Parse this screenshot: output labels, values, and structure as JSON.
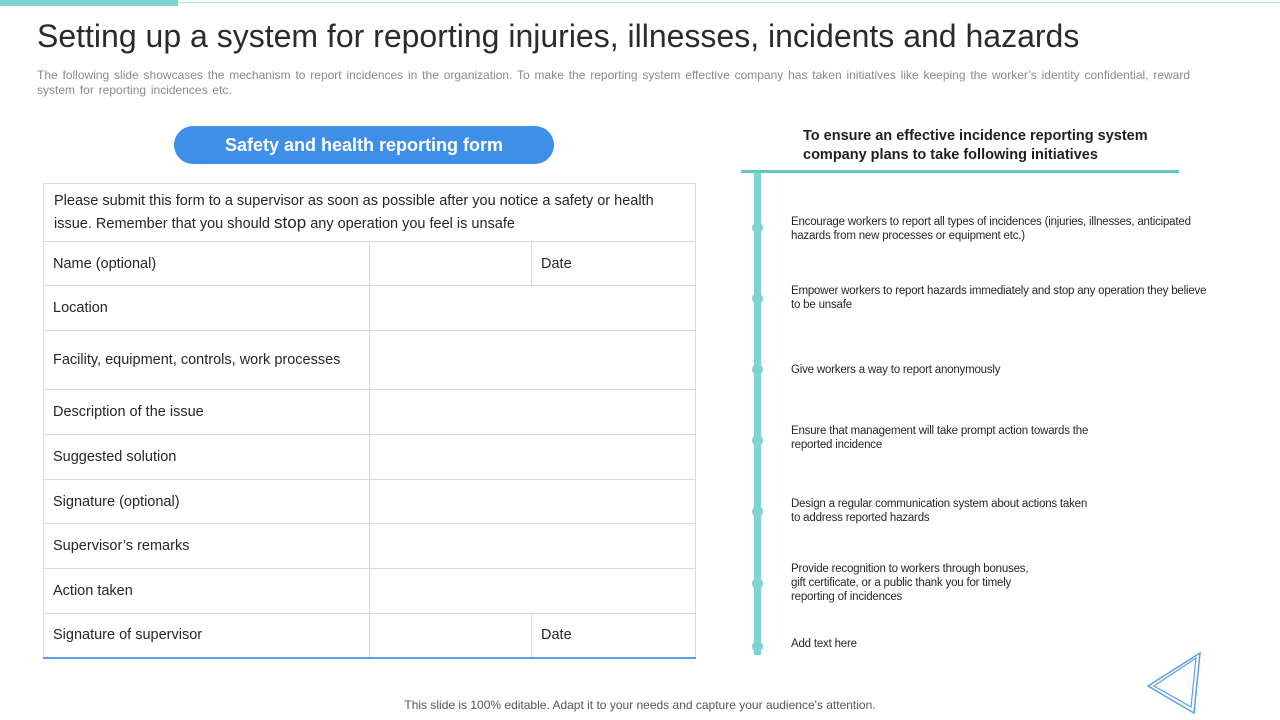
{
  "colors": {
    "accent_teal": "#7fd3d0",
    "accent_blue": "#3d8fe8",
    "table_border": "#d9d9d9"
  },
  "slide": {
    "title": "Setting up a system for reporting injuries, illnesses, incidents and hazards",
    "subtitle": "The following slide showcases the mechanism to report incidences in the organization. To make the reporting system effective company has taken initiatives like keeping the worker’s identity confidential, reward system for reporting incidences etc.",
    "footer": "This slide is 100% editable. Adapt it to your needs and capture your audience's attention."
  },
  "form": {
    "header": "Safety and health reporting form",
    "intro_before": "Please submit this form to a supervisor as soon as possible after you notice a safety or health issue. Remember that you should ",
    "intro_emphasis": "stop",
    "intro_after": " any operation you feel is unsafe",
    "rows": [
      {
        "label": "Name (optional)",
        "extra": "Date"
      },
      {
        "label": "Location"
      },
      {
        "label": "Facility, equipment, controls, work processes"
      },
      {
        "label": "Description of the issue"
      },
      {
        "label": "Suggested solution"
      },
      {
        "label": "Signature (optional)"
      },
      {
        "label": "Supervisor’s remarks"
      },
      {
        "label": "Action taken"
      },
      {
        "label": "Signature of supervisor",
        "extra": "Date"
      }
    ]
  },
  "initiatives": {
    "heading": "To ensure an effective incidence reporting system company plans to take following initiatives",
    "items": [
      "Encourage workers to report all types of incidences (injuries, illnesses, anticipated hazards from new processes or equipment etc.)",
      "Empower workers to report hazards immediately and stop any operation they believe to be unsafe",
      "Give workers a way to report anonymously",
      "Ensure that management will take prompt action towards the reported incidence",
      "Design a regular communication system about actions taken to address reported hazards",
      "Provide recognition to workers through bonuses, gift certificate, or a public thank you for timely reporting of incidences",
      "Add text here"
    ]
  },
  "icons": {
    "decoration": "triangle-outline-icon"
  }
}
